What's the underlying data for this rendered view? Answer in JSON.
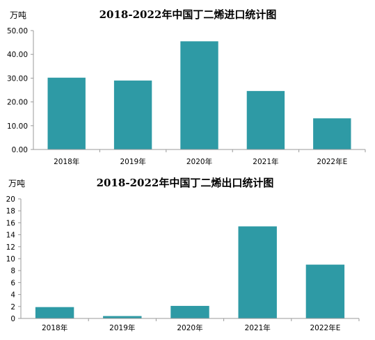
{
  "chart_data": [
    {
      "type": "bar",
      "title": "2018-2022年中国丁二烯进口统计图",
      "unit_label": "万吨",
      "categories": [
        "2018年",
        "2019年",
        "2020年",
        "2021年",
        "2022年E"
      ],
      "values": [
        30.2,
        29.0,
        45.5,
        24.6,
        13.1
      ],
      "ylim": [
        0,
        50
      ],
      "yticks": [
        "0.00",
        "10.00",
        "20.00",
        "30.00",
        "40.00",
        "50.00"
      ],
      "bar_color": "#2e9aa5",
      "grid": false
    },
    {
      "type": "bar",
      "title": "2018-2022年中国丁二烯出口统计图",
      "unit_label": "万吨",
      "categories": [
        "2018年",
        "2019年",
        "2020年",
        "2021年",
        "2022年E"
      ],
      "values": [
        1.9,
        0.4,
        2.1,
        15.4,
        9.0
      ],
      "ylim": [
        0,
        20
      ],
      "yticks": [
        "0",
        "2",
        "4",
        "6",
        "8",
        "10",
        "12",
        "14",
        "16",
        "18",
        "20"
      ],
      "bar_color": "#2e9aa5",
      "grid": false
    }
  ]
}
